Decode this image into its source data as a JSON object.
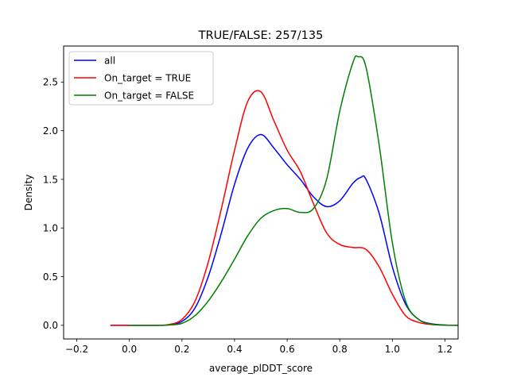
{
  "chart_data": {
    "type": "line",
    "title": "TRUE/FALSE: 257/135",
    "xlabel": "average_plDDT_score",
    "ylabel": "Density",
    "xlim": [
      -0.25,
      1.25
    ],
    "ylim": [
      -0.14,
      2.87
    ],
    "xticks": [
      -0.2,
      0.0,
      0.2,
      0.4,
      0.6,
      0.8,
      1.0,
      1.2
    ],
    "yticks": [
      0.0,
      0.5,
      1.0,
      1.5,
      2.0,
      2.5
    ],
    "grid": false,
    "legend_position": "top-left",
    "series": [
      {
        "name": "all",
        "color": "#0000ff",
        "x": [
          -0.07,
          0.0,
          0.1,
          0.15,
          0.2,
          0.25,
          0.3,
          0.35,
          0.4,
          0.45,
          0.5,
          0.55,
          0.6,
          0.65,
          0.7,
          0.75,
          0.8,
          0.85,
          0.88,
          0.9,
          0.95,
          1.0,
          1.05,
          1.1,
          1.15,
          1.2,
          1.25
        ],
        "y": [
          0.0,
          0.0,
          0.0,
          0.005,
          0.04,
          0.18,
          0.5,
          0.95,
          1.45,
          1.82,
          1.96,
          1.82,
          1.65,
          1.5,
          1.32,
          1.22,
          1.28,
          1.46,
          1.52,
          1.5,
          1.15,
          0.6,
          0.22,
          0.06,
          0.015,
          0.003,
          0.0
        ]
      },
      {
        "name": "On_target = TRUE",
        "color": "#ff0000",
        "x": [
          -0.07,
          0.0,
          0.1,
          0.15,
          0.2,
          0.25,
          0.3,
          0.35,
          0.4,
          0.45,
          0.5,
          0.55,
          0.6,
          0.65,
          0.7,
          0.75,
          0.8,
          0.85,
          0.9,
          0.95,
          1.0,
          1.05,
          1.1,
          1.15,
          1.2,
          1.25
        ],
        "y": [
          0.0,
          0.0,
          0.0,
          0.008,
          0.06,
          0.25,
          0.65,
          1.2,
          1.8,
          2.3,
          2.4,
          2.1,
          1.8,
          1.58,
          1.25,
          0.95,
          0.83,
          0.8,
          0.78,
          0.6,
          0.32,
          0.1,
          0.03,
          0.008,
          0.002,
          0.0
        ]
      },
      {
        "name": "On_target = FALSE",
        "color": "#008000",
        "x": [
          0.0,
          0.1,
          0.15,
          0.2,
          0.25,
          0.3,
          0.35,
          0.4,
          0.45,
          0.5,
          0.55,
          0.6,
          0.65,
          0.7,
          0.75,
          0.8,
          0.85,
          0.87,
          0.9,
          0.95,
          1.0,
          1.05,
          1.1,
          1.15,
          1.2,
          1.25
        ],
        "y": [
          0.0,
          0.0,
          0.003,
          0.02,
          0.1,
          0.25,
          0.45,
          0.68,
          0.92,
          1.1,
          1.18,
          1.2,
          1.16,
          1.2,
          1.5,
          2.2,
          2.7,
          2.76,
          2.65,
          1.85,
          0.85,
          0.25,
          0.06,
          0.012,
          0.002,
          0.0
        ]
      }
    ]
  }
}
